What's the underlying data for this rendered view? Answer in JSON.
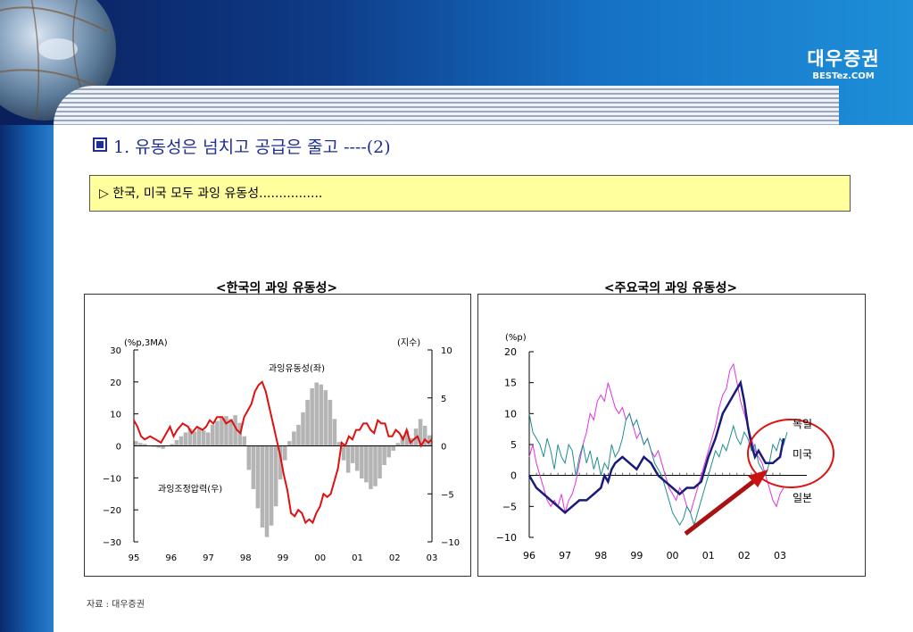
{
  "header": {
    "brand_korean": "대우증권",
    "brand_sub": "BESTez.COM"
  },
  "section_title": "1. 유동성은 넘치고 공급은 줄고 ----(2)",
  "note_text": "▷ 한국, 미국 모두 과잉 유동성................",
  "source_text": "자료 : 대우증권",
  "colors": {
    "red_series": "#dd1111",
    "bar_series": "#b4b4b4",
    "navy": "#1a1a7a",
    "magenta": "#e032e0",
    "teal": "#1f8f8f",
    "arrow": "#cc1111"
  },
  "chart_data": [
    {
      "type": "bar+line",
      "title": "<한국의 과잉 유동성>",
      "left_unit": "(%p,3MA)",
      "right_unit": "(지수)",
      "ylim_left": [
        -30,
        30
      ],
      "ylim_right": [
        -10,
        10
      ],
      "yticks_left": [
        "30",
        "20",
        "10",
        "0",
        "−10",
        "−20",
        "−30"
      ],
      "yticks_right": [
        "10",
        "5",
        "0",
        "−5",
        "−10"
      ],
      "xticks": [
        "95",
        "96",
        "97",
        "98",
        "99",
        "00",
        "01",
        "02",
        "03"
      ],
      "x_start": 1995.0,
      "x_end": 2003.25,
      "annotations": [
        "과잉유동성(좌)",
        "과잉조정압력(우)"
      ],
      "line_series": {
        "name": "과잉유동성(좌)",
        "axis": "left",
        "x": [
          1995.0,
          1995.1,
          1995.2,
          1995.3,
          1995.45,
          1995.6,
          1995.75,
          1995.9,
          1996.0,
          1996.1,
          1996.2,
          1996.35,
          1996.5,
          1996.6,
          1996.75,
          1996.9,
          1997.0,
          1997.1,
          1997.2,
          1997.3,
          1997.45,
          1997.55,
          1997.7,
          1997.85,
          1997.95,
          1998.05,
          1998.15,
          1998.25,
          1998.35,
          1998.45,
          1998.55,
          1998.65,
          1998.75,
          1998.85,
          1998.95,
          1999.05,
          1999.15,
          1999.25,
          1999.35,
          1999.45,
          1999.55,
          1999.65,
          1999.75,
          1999.85,
          1999.95,
          2000.05,
          2000.15,
          2000.25,
          2000.35,
          2000.45,
          2000.55,
          2000.65,
          2000.75,
          2000.85,
          2000.95,
          2001.05,
          2001.15,
          2001.25,
          2001.35,
          2001.45,
          2001.55,
          2001.65,
          2001.75,
          2001.85,
          2001.95,
          2002.05,
          2002.15,
          2002.25,
          2002.35,
          2002.45,
          2002.55,
          2002.65,
          2002.75,
          2002.85,
          2002.95,
          2003.05,
          2003.15,
          2003.25
        ],
        "values": [
          8,
          6,
          3,
          2,
          3,
          2,
          1,
          4,
          6,
          3,
          5,
          7,
          6,
          4,
          6,
          5,
          6,
          8,
          7,
          9,
          9,
          7,
          8,
          5,
          4,
          9,
          11,
          13,
          17,
          19,
          20,
          17,
          12,
          7,
          2,
          -3,
          -9,
          -14,
          -21,
          -22,
          -20,
          -21,
          -24,
          -23,
          -24,
          -21,
          -19,
          -15,
          -16,
          -15,
          -11,
          -7,
          1,
          0,
          3,
          2,
          5,
          5,
          7,
          7,
          5,
          4,
          8,
          7,
          7,
          3,
          3,
          5,
          4,
          2,
          5,
          1,
          2,
          3,
          0,
          2,
          1,
          2
        ]
      },
      "bar_series": {
        "name": "과잉조정압력(우)",
        "axis": "right",
        "x": [
          1995.0,
          1995.125,
          1995.25,
          1995.375,
          1995.5,
          1995.625,
          1995.75,
          1995.875,
          1996.0,
          1996.125,
          1996.25,
          1996.375,
          1996.5,
          1996.625,
          1996.75,
          1996.875,
          1997.0,
          1997.125,
          1997.25,
          1997.375,
          1997.5,
          1997.625,
          1997.75,
          1997.875,
          1998.0,
          1998.125,
          1998.25,
          1998.375,
          1998.5,
          1998.625,
          1998.75,
          1998.875,
          1999.0,
          1999.125,
          1999.25,
          1999.375,
          1999.5,
          1999.625,
          1999.75,
          1999.875,
          2000.0,
          2000.125,
          2000.25,
          2000.375,
          2000.5,
          2000.625,
          2000.75,
          2000.875,
          2001.0,
          2001.125,
          2001.25,
          2001.375,
          2001.5,
          2001.625,
          2001.75,
          2001.875,
          2002.0,
          2002.125,
          2002.25,
          2002.375,
          2002.5,
          2002.625,
          2002.75,
          2002.875,
          2003.0,
          2003.125
        ],
        "values": [
          0.5,
          0.3,
          0.2,
          0,
          -0.1,
          -0.2,
          -0.3,
          0,
          0.2,
          0.6,
          1,
          1.4,
          1.8,
          1.5,
          1.9,
          1.6,
          1.4,
          2.2,
          2.6,
          2.9,
          3.1,
          2.8,
          3.2,
          2.4,
          1,
          -2.5,
          -4.5,
          -6.5,
          -8.5,
          -9.5,
          -8.3,
          -6.3,
          -3.5,
          -1.5,
          0.5,
          1.5,
          2.2,
          3.5,
          4.8,
          6,
          6.6,
          6.4,
          5.8,
          4.8,
          2.8,
          0.4,
          -1.5,
          -2.8,
          -1.8,
          -2.6,
          -3.4,
          -3.8,
          -4.5,
          -4.2,
          -3.4,
          -2,
          -1.2,
          -0.5,
          0.3,
          1.1,
          1.6,
          0.8,
          1.8,
          2.8,
          2.1,
          1.1
        ]
      }
    },
    {
      "type": "line",
      "title": "<주요국의 과잉 유동성>",
      "unit": "(%p)",
      "ylim": [
        -10,
        20
      ],
      "yticks": [
        "20",
        "15",
        "10",
        "5",
        "0",
        "−5",
        "−10"
      ],
      "xticks": [
        "96",
        "97",
        "98",
        "99",
        "00",
        "01",
        "02",
        "03"
      ],
      "x_start": 1996.0,
      "x_end": 2003.2,
      "legend_labels": [
        "독일",
        "미국",
        "일본"
      ],
      "series": [
        {
          "name": "미국",
          "color": "#1a1a7a",
          "x": [
            1996.0,
            1996.2,
            1996.4,
            1996.6,
            1996.8,
            1997.0,
            1997.2,
            1997.4,
            1997.6,
            1997.8,
            1998.0,
            1998.1,
            1998.2,
            1998.3,
            1998.4,
            1998.6,
            1998.8,
            1999.0,
            1999.2,
            1999.4,
            1999.6,
            1999.8,
            2000.0,
            2000.2,
            2000.4,
            2000.6,
            2000.8,
            2001.0,
            2001.2,
            2001.4,
            2001.6,
            2001.8,
            2001.9,
            2002.0,
            2002.1,
            2002.2,
            2002.3,
            2002.4,
            2002.6,
            2002.8,
            2003.0,
            2003.1
          ],
          "values": [
            0,
            -2,
            -3,
            -4,
            -5,
            -6,
            -5,
            -4,
            -4,
            -3,
            -2,
            0,
            -1,
            1,
            2,
            3,
            2,
            1,
            3,
            2,
            0,
            -1,
            -2,
            -3,
            -2,
            -2,
            -1,
            3,
            6,
            10,
            12,
            14,
            15,
            12,
            8,
            5,
            3,
            4,
            2,
            2,
            3,
            6
          ]
        },
        {
          "name": "일본",
          "color": "#e032e0",
          "x": [
            1996.0,
            1996.1,
            1996.2,
            1996.3,
            1996.4,
            1996.5,
            1996.6,
            1996.7,
            1996.8,
            1996.9,
            1997.0,
            1997.1,
            1997.2,
            1997.3,
            1997.4,
            1997.5,
            1997.6,
            1997.7,
            1997.8,
            1997.9,
            1998.0,
            1998.1,
            1998.2,
            1998.3,
            1998.4,
            1998.5,
            1998.6,
            1998.7,
            1998.8,
            1998.9,
            1999.0,
            1999.1,
            1999.2,
            1999.3,
            1999.4,
            1999.5,
            1999.6,
            1999.7,
            1999.8,
            1999.9,
            2000.0,
            2000.1,
            2000.2,
            2000.3,
            2000.4,
            2000.5,
            2000.6,
            2000.7,
            2000.8,
            2000.9,
            2001.0,
            2001.1,
            2001.2,
            2001.3,
            2001.4,
            2001.5,
            2001.6,
            2001.7,
            2001.8,
            2001.9,
            2002.0,
            2002.1,
            2002.2,
            2002.3,
            2002.4,
            2002.5,
            2002.6,
            2002.7,
            2002.8,
            2002.9,
            2003.0,
            2003.1
          ],
          "values": [
            3,
            5,
            2,
            0,
            -2,
            -4,
            -5,
            -4,
            -5,
            -3,
            -6,
            -4,
            -3,
            -1,
            2,
            5,
            7,
            10,
            9,
            12,
            13,
            12,
            15,
            13,
            11,
            10,
            11,
            9,
            10,
            8,
            6,
            7,
            5,
            6,
            4,
            3,
            4,
            2,
            0,
            -2,
            -3,
            -4,
            -2,
            -3,
            -5,
            -6,
            -4,
            -2,
            0,
            2,
            4,
            6,
            8,
            11,
            13,
            14,
            17,
            18,
            15,
            12,
            10,
            8,
            6,
            4,
            3,
            2,
            0,
            -2,
            -4,
            -5,
            -3,
            -2
          ]
        },
        {
          "name": "독일",
          "color": "#1f8f8f",
          "x": [
            1996.0,
            1996.1,
            1996.2,
            1996.3,
            1996.4,
            1996.5,
            1996.6,
            1996.7,
            1996.8,
            1996.9,
            1997.0,
            1997.1,
            1997.2,
            1997.3,
            1997.4,
            1997.5,
            1997.6,
            1997.7,
            1997.8,
            1997.9,
            1998.0,
            1998.1,
            1998.2,
            1998.3,
            1998.4,
            1998.5,
            1998.6,
            1998.7,
            1998.8,
            1998.9,
            1999.0,
            1999.1,
            1999.2,
            1999.3,
            1999.4,
            1999.5,
            1999.6,
            1999.7,
            1999.8,
            1999.9,
            2000.0,
            2000.1,
            2000.2,
            2000.3,
            2000.4,
            2000.5,
            2000.6,
            2000.7,
            2000.8,
            2000.9,
            2001.0,
            2001.1,
            2001.2,
            2001.3,
            2001.4,
            2001.5,
            2001.6,
            2001.7,
            2001.8,
            2001.9,
            2002.0,
            2002.1,
            2002.2,
            2002.3,
            2002.4,
            2002.5,
            2002.6,
            2002.7,
            2002.8,
            2002.9,
            2003.0,
            2003.1,
            2003.2
          ],
          "values": [
            10,
            7,
            6,
            5,
            3,
            6,
            4,
            1,
            5,
            3,
            2,
            5,
            4,
            0,
            3,
            5,
            2,
            4,
            1,
            3,
            0,
            2,
            1,
            5,
            3,
            4,
            6,
            9,
            10,
            8,
            9,
            7,
            5,
            6,
            4,
            2,
            1,
            0,
            -2,
            -4,
            -6,
            -7,
            -8,
            -7,
            -5,
            -6,
            -8,
            -6,
            -4,
            -2,
            0,
            2,
            4,
            3,
            5,
            4,
            6,
            8,
            6,
            5,
            7,
            6,
            4,
            5,
            2,
            1,
            0,
            2,
            5,
            4,
            6,
            5,
            7
          ]
        }
      ]
    }
  ]
}
